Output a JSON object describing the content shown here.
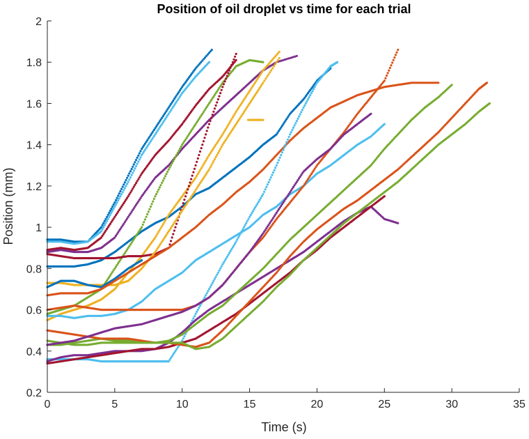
{
  "chart_data": {
    "type": "scatter",
    "title": "Position of oil droplet vs time for each trial",
    "xlabel": "Time (s)",
    "ylabel": "Position (mm)",
    "xlim": [
      0,
      35
    ],
    "ylim": [
      0.2,
      2
    ],
    "xticks": [
      0,
      5,
      10,
      15,
      20,
      25,
      30,
      35
    ],
    "xtick_labels": [
      "0",
      "5",
      "10",
      "15",
      "20",
      "25",
      "30",
      "35"
    ],
    "yticks": [
      0.2,
      0.4,
      0.6,
      0.8,
      1,
      1.2,
      1.4,
      1.6,
      1.8,
      2
    ],
    "ytick_labels": [
      "0.2",
      "0.4",
      "0.6",
      "0.8",
      "1",
      "1.2",
      "1.4",
      "1.6",
      "1.8",
      "2"
    ],
    "grid": false,
    "legend": "none",
    "colors": {
      "blue": "#0072BD",
      "orange": "#D95319",
      "yellow": "#EDB120",
      "purple": "#7E2F8E",
      "green": "#77AC30",
      "cyan": "#4DBEEE",
      "maroon": "#A2142F"
    },
    "series": [
      {
        "color": "blue",
        "x": [
          0,
          1,
          2,
          3,
          4,
          5,
          6,
          7,
          8,
          9,
          10,
          11,
          12.2
        ],
        "y": [
          0.94,
          0.94,
          0.93,
          0.93,
          1.0,
          1.12,
          1.25,
          1.38,
          1.48,
          1.58,
          1.68,
          1.77,
          1.86
        ]
      },
      {
        "color": "cyan",
        "x": [
          0,
          1,
          2,
          3,
          4,
          5,
          6,
          7,
          8,
          9,
          10,
          11,
          12
        ],
        "y": [
          0.93,
          0.93,
          0.92,
          0.93,
          0.98,
          1.1,
          1.22,
          1.35,
          1.45,
          1.55,
          1.65,
          1.73,
          1.8
        ]
      },
      {
        "color": "blue",
        "x": [
          0,
          1,
          2,
          3,
          4,
          5,
          6,
          7,
          8,
          9,
          10,
          11,
          12,
          13,
          14,
          15,
          16,
          17,
          18,
          19,
          20,
          21
        ],
        "y": [
          0.81,
          0.81,
          0.81,
          0.82,
          0.84,
          0.88,
          0.93,
          0.98,
          1.02,
          1.05,
          1.1,
          1.16,
          1.19,
          1.24,
          1.29,
          1.34,
          1.4,
          1.45,
          1.55,
          1.62,
          1.71,
          1.77
        ]
      },
      {
        "color": "maroon",
        "x": [
          0,
          1,
          2,
          3,
          4,
          5,
          6,
          7,
          8,
          9,
          10,
          11,
          12,
          13,
          14
        ],
        "y": [
          0.89,
          0.9,
          0.89,
          0.9,
          0.95,
          1.05,
          1.15,
          1.26,
          1.35,
          1.42,
          1.5,
          1.59,
          1.67,
          1.73,
          1.81
        ]
      },
      {
        "color": "purple",
        "x": [
          0,
          1,
          2,
          3,
          4,
          5,
          6,
          7,
          8,
          9,
          10,
          11,
          12,
          13,
          14,
          15,
          16,
          17,
          18.5
        ],
        "y": [
          0.88,
          0.89,
          0.88,
          0.88,
          0.9,
          0.95,
          1.05,
          1.15,
          1.24,
          1.3,
          1.38,
          1.45,
          1.52,
          1.58,
          1.64,
          1.7,
          1.76,
          1.8,
          1.83
        ]
      },
      {
        "color": "green",
        "x": [
          0,
          1,
          2,
          3,
          4,
          5,
          6,
          7,
          8,
          9,
          10,
          11,
          12,
          13,
          14,
          15,
          16
        ],
        "y": [
          0.58,
          0.6,
          0.62,
          0.66,
          0.7,
          0.8,
          0.9,
          1.0,
          1.15,
          1.28,
          1.4,
          1.5,
          1.6,
          1.7,
          1.78,
          1.81,
          1.8
        ]
      },
      {
        "color": "yellow",
        "x": [
          0,
          1,
          2,
          3,
          4,
          5,
          6,
          7,
          8,
          9,
          10,
          11,
          12,
          13,
          14,
          15,
          16,
          17.2
        ],
        "y": [
          0.55,
          0.58,
          0.6,
          0.62,
          0.65,
          0.7,
          0.78,
          0.86,
          0.95,
          1.06,
          1.15,
          1.24,
          1.35,
          1.45,
          1.56,
          1.66,
          1.76,
          1.85
        ]
      },
      {
        "color": "maroon",
        "x": [
          0,
          1,
          2,
          3,
          4,
          5,
          6,
          7,
          8,
          9,
          10,
          11,
          12,
          13,
          14
        ],
        "y": [
          0.87,
          0.86,
          0.85,
          0.85,
          0.85,
          0.85,
          0.86,
          0.86,
          0.87,
          0.9,
          1.1,
          1.3,
          1.5,
          1.68,
          1.84
        ]
      },
      {
        "color": "yellow",
        "x": [
          0,
          1,
          2,
          3,
          4,
          5,
          6,
          7,
          8,
          9,
          10,
          11,
          12,
          13,
          14,
          15,
          16,
          17.2
        ],
        "y": [
          0.73,
          0.73,
          0.72,
          0.72,
          0.72,
          0.72,
          0.74,
          0.8,
          0.88,
          0.98,
          1.08,
          1.18,
          1.28,
          1.4,
          1.5,
          1.6,
          1.7,
          1.82
        ]
      },
      {
        "color": "blue",
        "x": [
          0,
          1,
          2,
          3,
          4,
          5,
          6,
          7
        ],
        "y": [
          0.71,
          0.74,
          0.74,
          0.72,
          0.71,
          0.75,
          0.8,
          0.84
        ]
      },
      {
        "color": "cyan",
        "x": [
          0,
          1,
          2,
          3,
          4,
          5,
          6,
          7,
          8,
          9,
          10,
          11,
          12,
          13,
          14,
          15,
          16,
          17,
          18,
          19,
          20,
          21,
          22,
          23,
          24,
          25
        ],
        "y": [
          0.57,
          0.57,
          0.56,
          0.57,
          0.57,
          0.58,
          0.6,
          0.64,
          0.7,
          0.74,
          0.78,
          0.84,
          0.88,
          0.92,
          0.96,
          1.0,
          1.06,
          1.1,
          1.16,
          1.2,
          1.26,
          1.3,
          1.35,
          1.4,
          1.44,
          1.5
        ]
      },
      {
        "color": "orange",
        "x": [
          0,
          1,
          2,
          3,
          4,
          5,
          6,
          7,
          8,
          9,
          10,
          11,
          12,
          13,
          14,
          15,
          16,
          17,
          18,
          19,
          20,
          21,
          22,
          23,
          24,
          25,
          26
        ],
        "y": [
          0.6,
          0.61,
          0.62,
          0.61,
          0.6,
          0.6,
          0.6,
          0.6,
          0.6,
          0.6,
          0.6,
          0.62,
          0.66,
          0.72,
          0.8,
          0.88,
          0.95,
          1.04,
          1.12,
          1.2,
          1.3,
          1.38,
          1.46,
          1.55,
          1.63,
          1.71,
          1.86
        ]
      },
      {
        "color": "orange",
        "x": [
          0,
          1,
          2,
          3,
          4,
          5,
          6,
          7,
          8,
          9,
          10,
          11,
          12,
          13,
          14,
          15,
          16,
          17,
          18,
          19,
          20,
          21,
          22,
          23,
          24,
          25,
          26,
          27,
          28,
          29
        ],
        "y": [
          0.67,
          0.68,
          0.68,
          0.68,
          0.7,
          0.74,
          0.78,
          0.82,
          0.86,
          0.9,
          0.95,
          1.0,
          1.06,
          1.11,
          1.17,
          1.22,
          1.28,
          1.35,
          1.42,
          1.48,
          1.53,
          1.58,
          1.61,
          1.64,
          1.66,
          1.68,
          1.69,
          1.7,
          1.7,
          1.7
        ]
      },
      {
        "color": "cyan",
        "x": [
          0,
          1,
          2,
          3,
          4,
          5,
          6,
          7,
          8,
          9,
          10,
          11,
          12,
          13,
          14,
          15,
          16,
          17,
          18,
          19,
          20,
          21,
          21.5
        ],
        "y": [
          0.36,
          0.36,
          0.36,
          0.36,
          0.35,
          0.35,
          0.35,
          0.35,
          0.35,
          0.35,
          0.45,
          0.58,
          0.7,
          0.82,
          0.93,
          1.05,
          1.16,
          1.3,
          1.45,
          1.58,
          1.7,
          1.78,
          1.8
        ]
      },
      {
        "color": "purple",
        "x": [
          0,
          1,
          2,
          3,
          4,
          5,
          6,
          7,
          8,
          9,
          10,
          11,
          12,
          13,
          14,
          15,
          16,
          17,
          18,
          19,
          20,
          21,
          22,
          23,
          24,
          25,
          26
        ],
        "y": [
          0.35,
          0.37,
          0.38,
          0.38,
          0.39,
          0.4,
          0.4,
          0.4,
          0.41,
          0.44,
          0.49,
          0.55,
          0.6,
          0.64,
          0.68,
          0.72,
          0.76,
          0.8,
          0.84,
          0.88,
          0.93,
          0.98,
          1.03,
          1.07,
          1.1,
          1.04,
          1.02
        ]
      },
      {
        "color": "green",
        "x": [
          0,
          1,
          2,
          3,
          4,
          5,
          6,
          7,
          8,
          9,
          10,
          11,
          12,
          13,
          14,
          15,
          16,
          17,
          18,
          19,
          20,
          21,
          22,
          23,
          24,
          25,
          26,
          27,
          28,
          29,
          30
        ],
        "y": [
          0.43,
          0.43,
          0.44,
          0.45,
          0.46,
          0.45,
          0.45,
          0.44,
          0.44,
          0.45,
          0.48,
          0.53,
          0.58,
          0.62,
          0.68,
          0.74,
          0.8,
          0.87,
          0.94,
          1.0,
          1.06,
          1.12,
          1.18,
          1.24,
          1.3,
          1.38,
          1.45,
          1.52,
          1.58,
          1.63,
          1.69
        ]
      },
      {
        "color": "maroon",
        "x": [
          0,
          1,
          2,
          3,
          4,
          5,
          6,
          7,
          8,
          9,
          10,
          11,
          12,
          13,
          14,
          15,
          16,
          17,
          18,
          19,
          20,
          21,
          22,
          23,
          24,
          25
        ],
        "y": [
          0.34,
          0.35,
          0.36,
          0.37,
          0.38,
          0.39,
          0.4,
          0.41,
          0.41,
          0.42,
          0.44,
          0.46,
          0.5,
          0.54,
          0.58,
          0.63,
          0.68,
          0.73,
          0.78,
          0.84,
          0.89,
          0.95,
          1.0,
          1.05,
          1.1,
          1.15
        ]
      },
      {
        "color": "orange",
        "x": [
          0,
          1,
          2,
          3,
          4,
          5,
          6,
          7,
          8,
          9,
          10,
          11,
          12,
          13,
          14,
          15,
          16,
          17,
          18,
          19,
          20,
          21,
          22,
          23,
          24,
          25,
          26,
          27,
          28,
          29,
          30,
          31,
          32,
          32.6
        ],
        "y": [
          0.5,
          0.49,
          0.48,
          0.47,
          0.46,
          0.46,
          0.46,
          0.45,
          0.44,
          0.44,
          0.43,
          0.42,
          0.44,
          0.5,
          0.57,
          0.64,
          0.71,
          0.78,
          0.86,
          0.93,
          0.99,
          1.04,
          1.09,
          1.13,
          1.18,
          1.23,
          1.28,
          1.34,
          1.4,
          1.46,
          1.53,
          1.6,
          1.67,
          1.7
        ]
      },
      {
        "color": "green",
        "x": [
          0,
          1,
          2,
          3,
          4,
          5,
          6,
          7,
          8,
          9,
          10,
          11,
          12,
          13,
          14,
          15,
          16,
          17,
          18,
          19,
          20,
          21,
          22,
          23,
          24,
          25,
          26,
          27,
          28,
          29,
          30,
          31,
          32,
          32.8
        ],
        "y": [
          0.45,
          0.44,
          0.43,
          0.43,
          0.44,
          0.44,
          0.44,
          0.44,
          0.44,
          0.44,
          0.44,
          0.41,
          0.42,
          0.46,
          0.52,
          0.58,
          0.64,
          0.71,
          0.77,
          0.84,
          0.9,
          0.96,
          1.02,
          1.07,
          1.12,
          1.17,
          1.22,
          1.28,
          1.34,
          1.4,
          1.45,
          1.5,
          1.56,
          1.6
        ]
      },
      {
        "color": "purple",
        "x": [
          0,
          1,
          2,
          3,
          4,
          5,
          6,
          7,
          8,
          9,
          10,
          11,
          12,
          13,
          14,
          15,
          16,
          17,
          18,
          19,
          20,
          21,
          22,
          23,
          24
        ],
        "y": [
          0.43,
          0.44,
          0.45,
          0.47,
          0.49,
          0.51,
          0.52,
          0.53,
          0.55,
          0.57,
          0.59,
          0.62,
          0.66,
          0.72,
          0.8,
          0.88,
          0.97,
          1.07,
          1.17,
          1.27,
          1.33,
          1.38,
          1.45,
          1.5,
          1.55
        ]
      },
      {
        "color": "yellow",
        "x": [
          14.9,
          16.0
        ],
        "y": [
          1.52,
          1.52
        ]
      }
    ]
  }
}
